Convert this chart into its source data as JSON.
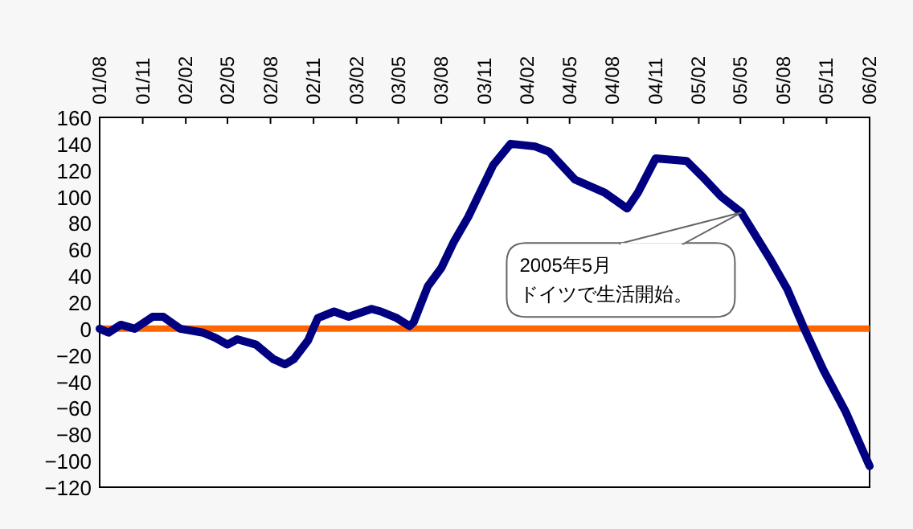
{
  "chart_data": {
    "type": "line",
    "x": [
      "2001-08-01",
      "2001-08-20",
      "2001-09-15",
      "2001-10-15",
      "2001-11-22",
      "2001-12-15",
      "2002-01-20",
      "2002-03-10",
      "2002-04-06",
      "2002-05-01",
      "2002-05-22",
      "2002-07-01",
      "2002-08-07",
      "2002-09-01",
      "2002-09-20",
      "2002-10-20",
      "2002-11-10",
      "2002-12-15",
      "2003-01-15",
      "2003-03-05",
      "2003-03-25",
      "2003-04-28",
      "2003-05-25",
      "2003-06-03",
      "2003-07-03",
      "2003-08-01",
      "2003-08-28",
      "2003-09-28",
      "2003-10-25",
      "2003-11-20",
      "2003-12-27",
      "2004-02-17",
      "2004-03-18",
      "2004-05-12",
      "2004-07-15",
      "2004-09-01",
      "2004-09-24",
      "2004-11-01",
      "2005-01-06",
      "2005-02-09",
      "2005-03-21",
      "2005-05-03",
      "2005-07-03",
      "2005-08-09",
      "2005-09-12",
      "2005-10-25",
      "2005-12-12",
      "2006-02-01"
    ],
    "series": [
      {
        "color": "#000080",
        "values": [
          0,
          -3,
          3,
          0,
          9,
          9,
          0,
          -3,
          -7,
          -12,
          -8,
          -12,
          -23,
          -27,
          -23,
          -9,
          8,
          13,
          9,
          15,
          13,
          8,
          2,
          5,
          32,
          46,
          66,
          85,
          105,
          124,
          140,
          138,
          134,
          113,
          103,
          91,
          103,
          129,
          127,
          115,
          100,
          88,
          53,
          30,
          2,
          -31,
          -63,
          -104
        ]
      }
    ],
    "xlim": [
      "2001-08-01",
      "2006-02-01"
    ],
    "xticks": [
      {
        "value": "2001-08-01",
        "label": "01/08"
      },
      {
        "value": "2001-11-01",
        "label": "01/11"
      },
      {
        "value": "2002-02-01",
        "label": "02/02"
      },
      {
        "value": "2002-05-01",
        "label": "02/05"
      },
      {
        "value": "2002-08-01",
        "label": "02/08"
      },
      {
        "value": "2002-11-01",
        "label": "02/11"
      },
      {
        "value": "2003-02-01",
        "label": "03/02"
      },
      {
        "value": "2003-05-01",
        "label": "03/05"
      },
      {
        "value": "2003-08-01",
        "label": "03/08"
      },
      {
        "value": "2003-11-01",
        "label": "03/11"
      },
      {
        "value": "2004-02-01",
        "label": "04/02"
      },
      {
        "value": "2004-05-01",
        "label": "04/05"
      },
      {
        "value": "2004-08-01",
        "label": "04/08"
      },
      {
        "value": "2004-11-01",
        "label": "04/11"
      },
      {
        "value": "2005-02-01",
        "label": "05/02"
      },
      {
        "value": "2005-05-01",
        "label": "05/05"
      },
      {
        "value": "2005-08-01",
        "label": "05/08"
      },
      {
        "value": "2005-11-01",
        "label": "05/11"
      },
      {
        "value": "2006-02-01",
        "label": "06/02"
      }
    ],
    "ylim": [
      -120,
      160
    ],
    "yticks": [
      -120,
      -100,
      -80,
      -60,
      -40,
      -20,
      0,
      20,
      40,
      60,
      80,
      100,
      120,
      140,
      160
    ],
    "ref_lines": [
      {
        "axis": "y",
        "value": 0,
        "color": "#ff6600"
      }
    ],
    "annotations": [
      {
        "text": "2005年5月",
        "x": "2005-05-03",
        "y": 88
      },
      "ドイツで生活開始。"
    ],
    "grid": false,
    "marker": "none",
    "line_style": "solid"
  }
}
